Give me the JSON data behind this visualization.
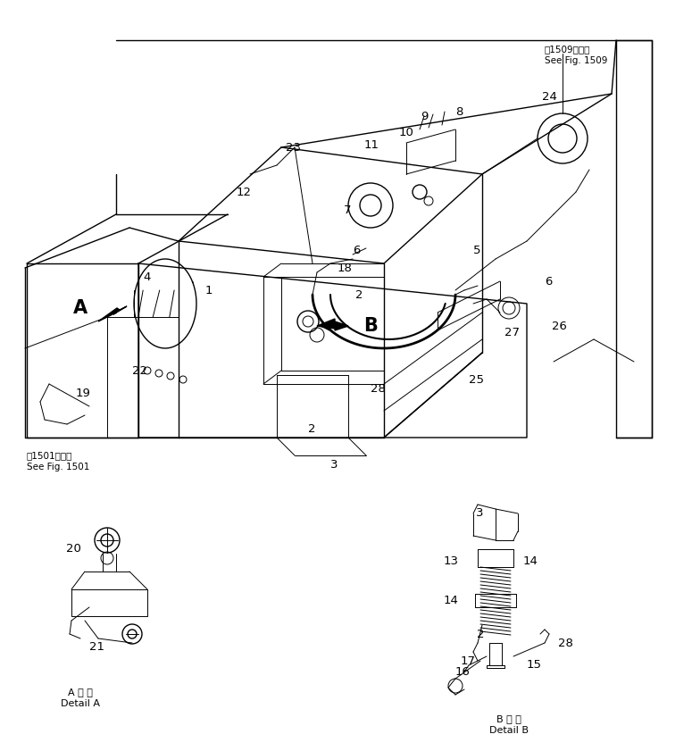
{
  "bg_color": "#ffffff",
  "line_color": "#000000",
  "fig_width": 7.75,
  "fig_height": 8.41,
  "dpi": 100,
  "top_right_text1": "第1509図参照",
  "top_right_text2": "See Fig. 1509",
  "bottom_left_text1": "第1501図参照",
  "bottom_left_text2": "See Fig. 1501",
  "detail_a_jp": "A 詳 細",
  "detail_a_en": "Detail A",
  "detail_b_jp": "B 詳 細",
  "detail_b_en": "Detail B"
}
